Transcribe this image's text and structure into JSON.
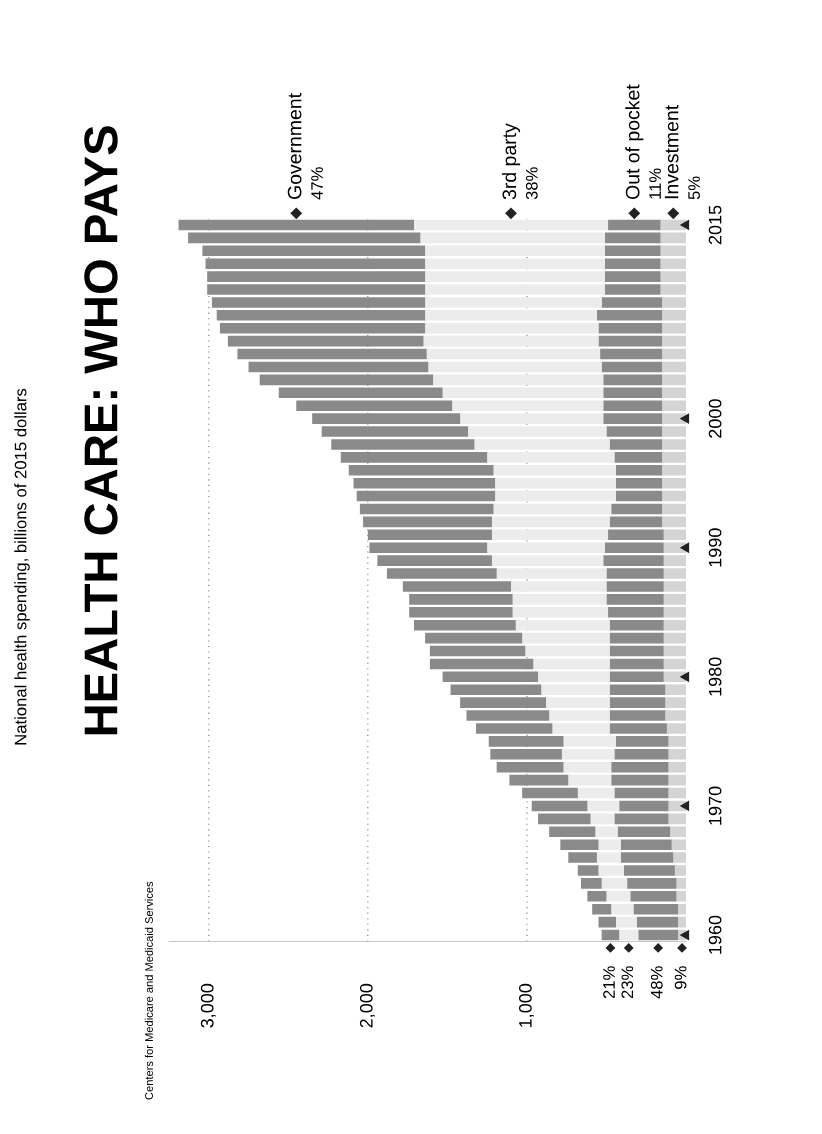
{
  "chart_data": {
    "type": "bar",
    "orientation": "horizontal",
    "stacked": true,
    "title": "HEALTH CARE: WHO PAYS",
    "categories": [
      "2015",
      null,
      null,
      null,
      null,
      null,
      null,
      null,
      null,
      null,
      null,
      null,
      null,
      null,
      null,
      "2000",
      null,
      null,
      null,
      null,
      null,
      null,
      null,
      null,
      null,
      "1990",
      null,
      null,
      null,
      null,
      null,
      null,
      null,
      null,
      null,
      "1980",
      null,
      null,
      null,
      null,
      null,
      null,
      null,
      null,
      null,
      "1970",
      null,
      null,
      null,
      null,
      null,
      null,
      null,
      null,
      null,
      "1960"
    ],
    "series": [
      {
        "name": "Investment",
        "color": "#d4d4d4",
        "values": [
          160,
          160,
          160,
          160,
          160,
          160,
          150,
          150,
          150,
          150,
          150,
          150,
          150,
          150,
          150,
          150,
          150,
          150,
          150,
          150,
          150,
          150,
          150,
          150,
          140,
          140,
          140,
          140,
          140,
          140,
          140,
          140,
          140,
          140,
          140,
          140,
          130,
          130,
          130,
          120,
          110,
          110,
          110,
          110,
          110,
          110,
          110,
          100,
          90,
          80,
          70,
          60,
          60,
          50,
          50,
          50
        ]
      },
      {
        "name": "Out of pocket",
        "color": "#8a8a8a",
        "values": [
          330,
          350,
          350,
          350,
          350,
          350,
          380,
          410,
          400,
          400,
          390,
          380,
          370,
          370,
          370,
          370,
          350,
          330,
          300,
          290,
          290,
          290,
          320,
          330,
          350,
          370,
          380,
          360,
          360,
          360,
          350,
          340,
          340,
          340,
          340,
          340,
          350,
          350,
          350,
          360,
          330,
          340,
          360,
          360,
          340,
          310,
          340,
          330,
          320,
          330,
          320,
          310,
          290,
          280,
          260,
          250
        ]
      },
      {
        "name": "3rd party",
        "color": "#ececec",
        "values": [
          1220,
          1160,
          1130,
          1130,
          1130,
          1130,
          1110,
          1080,
          1090,
          1100,
          1090,
          1090,
          1070,
          1010,
          950,
          900,
          870,
          850,
          800,
          770,
          760,
          760,
          740,
          740,
          730,
          740,
          700,
          690,
          600,
          590,
          600,
          590,
          550,
          530,
          480,
          450,
          430,
          400,
          380,
          360,
          330,
          330,
          300,
          270,
          230,
          200,
          150,
          140,
          140,
          150,
          160,
          160,
          150,
          140,
          130,
          120
        ]
      },
      {
        "name": "Government",
        "color": "#8a8a8a",
        "values": [
          1480,
          1460,
          1400,
          1380,
          1370,
          1370,
          1340,
          1310,
          1290,
          1230,
          1190,
          1130,
          1090,
          1030,
          980,
          930,
          920,
          900,
          920,
          910,
          890,
          870,
          840,
          810,
          780,
          740,
          720,
          690,
          680,
          650,
          650,
          640,
          610,
          600,
          650,
          600,
          570,
          540,
          520,
          480,
          470,
          450,
          420,
          370,
          350,
          350,
          330,
          290,
          240,
          180,
          130,
          130,
          120,
          120,
          110,
          110
        ]
      }
    ],
    "xlim": [
      3250,
      0
    ],
    "xticks": [
      {
        "value": 3000,
        "label": "3,000"
      },
      {
        "value": 2000,
        "label": "2,000"
      },
      {
        "value": 1000,
        "label": "1,000"
      }
    ],
    "grid": "x",
    "annotations": [
      {
        "text": "21%",
        "x": 475,
        "y": "1960"
      },
      {
        "text": "23%",
        "x": 360,
        "y": "1960"
      },
      {
        "text": "48%",
        "x": 175,
        "y": "1960"
      },
      {
        "text": "9%",
        "x": 25,
        "y": "1960"
      },
      {
        "text": "47%",
        "x": 2450,
        "y": "2015"
      },
      {
        "text": "38%",
        "x": 1100,
        "y": "2015"
      },
      {
        "text": "11%",
        "x": 325,
        "y": "2015"
      },
      {
        "text": "5%",
        "x": 80,
        "y": "2015"
      },
      "National health spending, billions of 2015 dollars",
      "Centers for Medicare and Medicaid Services"
    ]
  }
}
